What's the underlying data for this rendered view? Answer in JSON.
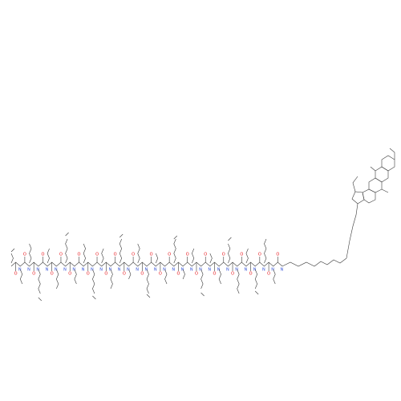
{
  "structure": {
    "atom_labels": [
      "O",
      "N",
      "O",
      "N",
      "O",
      "N",
      "O",
      "N",
      "O",
      "N",
      "O",
      "N",
      "O",
      "N",
      "O",
      "N",
      "O",
      "N",
      "O",
      "N",
      "O",
      "N",
      "O",
      "N",
      "O",
      "N",
      "O",
      "N",
      "O",
      "N",
      "O",
      "N",
      "O",
      "N",
      "O",
      "N",
      "O",
      "N",
      "O",
      "N",
      "O",
      "N",
      "O",
      "N",
      "O",
      "N",
      "O",
      "N",
      "O",
      "N",
      "O",
      "N",
      "O",
      "N",
      "O",
      "N",
      "O",
      "N",
      "O",
      "N"
    ]
  }
}
